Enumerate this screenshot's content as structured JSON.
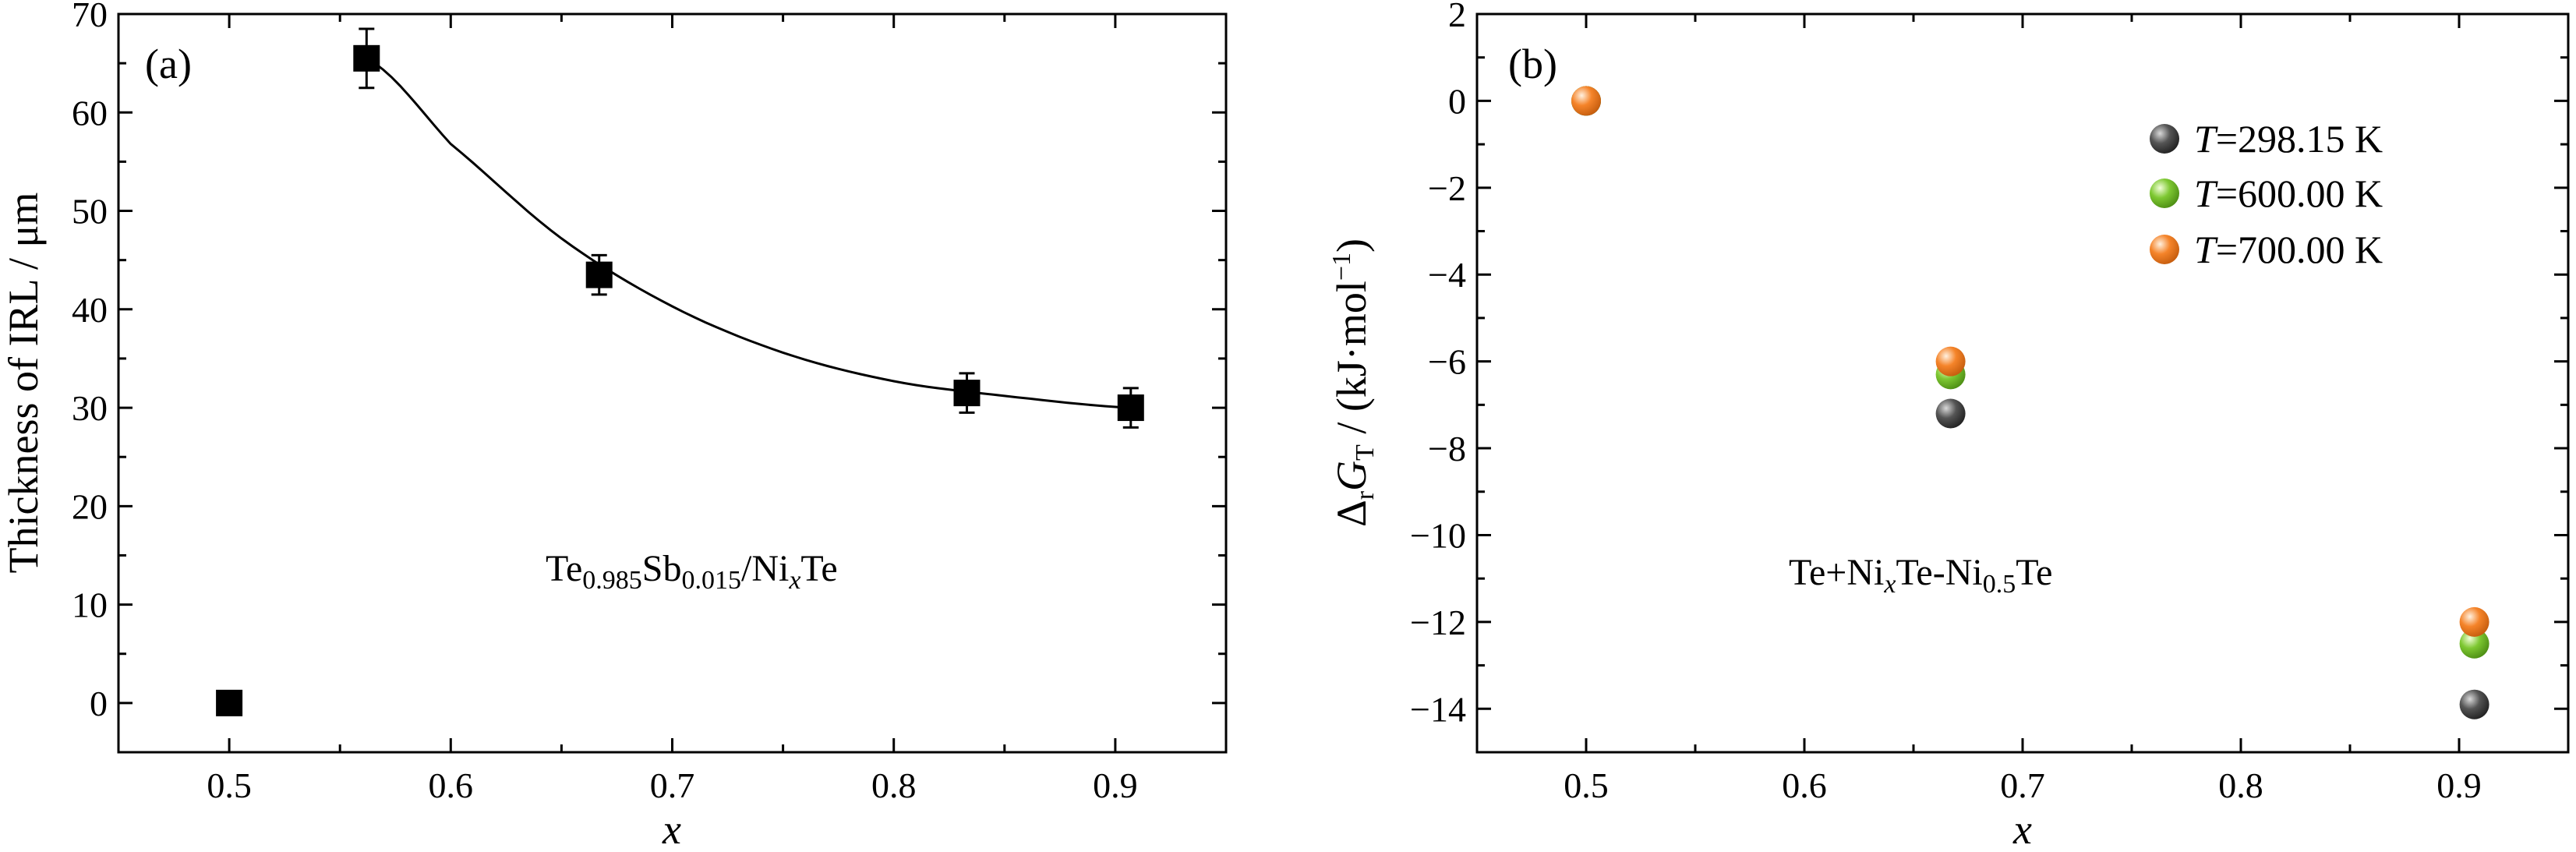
{
  "chart_data": [
    {
      "panel": "(a)",
      "type": "scatter",
      "xlabel": "x",
      "ylabel": "Thickness of IRL / μm",
      "xlim": [
        0.45,
        0.95
      ],
      "ylim": [
        -5,
        70
      ],
      "xticks": [
        "0.5",
        "0.6",
        "0.7",
        "0.8",
        "0.9"
      ],
      "yticks": [
        "0",
        "10",
        "20",
        "30",
        "40",
        "50",
        "60",
        "70"
      ],
      "annotation": {
        "base1": "Te",
        "sub1": "0.985",
        "base2": "Sb",
        "sub2": "0.015",
        "base3": "/Ni",
        "sub3": "x",
        "base4": "Te"
      },
      "marker": "square",
      "color": "#000000",
      "points": [
        {
          "x": 0.5,
          "y": 0.0,
          "err": 0
        },
        {
          "x": 0.562,
          "y": 65.5,
          "err": 3.0
        },
        {
          "x": 0.667,
          "y": 43.5,
          "err": 2.0
        },
        {
          "x": 0.833,
          "y": 31.5,
          "err": 2.0
        },
        {
          "x": 0.907,
          "y": 30.0,
          "err": 2.0
        }
      ],
      "fit_curve": {
        "x_from": 0.562,
        "x_to": 0.907,
        "y_at": [
          [
            0.562,
            65.5
          ],
          [
            0.6,
            56.8
          ],
          [
            0.65,
            47.2
          ],
          [
            0.7,
            40.3
          ],
          [
            0.75,
            35.6
          ],
          [
            0.8,
            32.7
          ],
          [
            0.85,
            31.2
          ],
          [
            0.907,
            30.0
          ]
        ]
      }
    },
    {
      "panel": "(b)",
      "type": "scatter",
      "xlabel": "x",
      "ylabel": {
        "base1": "Δ",
        "sub1": "r",
        "base2": "G",
        "sub2": "T",
        "base3": " / (kJ·mol",
        "sup3": "−1",
        "base4": ")"
      },
      "xlim": [
        0.45,
        0.95
      ],
      "ylim": [
        -15,
        2
      ],
      "xticks": [
        "0.5",
        "0.6",
        "0.7",
        "0.8",
        "0.9"
      ],
      "yticks": [
        "2",
        "0",
        "−2",
        "−4",
        "−6",
        "−8",
        "−10",
        "−12",
        "−14"
      ],
      "annotation": {
        "base1": "Te+Ni",
        "sub1": "x",
        "base2": "Te-Ni",
        "sub2": "0.5",
        "base3": "Te"
      },
      "legend_position": "top-right",
      "series": [
        {
          "name": {
            "var": "T",
            "text": "=298.15 K"
          },
          "color": "#555555",
          "x": [
            0.5,
            0.667,
            0.907
          ],
          "y": [
            0.0,
            -7.2,
            -13.9
          ]
        },
        {
          "name": {
            "var": "T",
            "text": "=600.00 K"
          },
          "color": "#7ec832",
          "x": [
            0.5,
            0.667,
            0.907
          ],
          "y": [
            0.0,
            -6.3,
            -12.5
          ]
        },
        {
          "name": {
            "var": "T",
            "text": "=700.00 K"
          },
          "color": "#f5842a",
          "x": [
            0.5,
            0.667,
            0.907
          ],
          "y": [
            0.0,
            -6.0,
            -12.0
          ]
        }
      ]
    }
  ]
}
